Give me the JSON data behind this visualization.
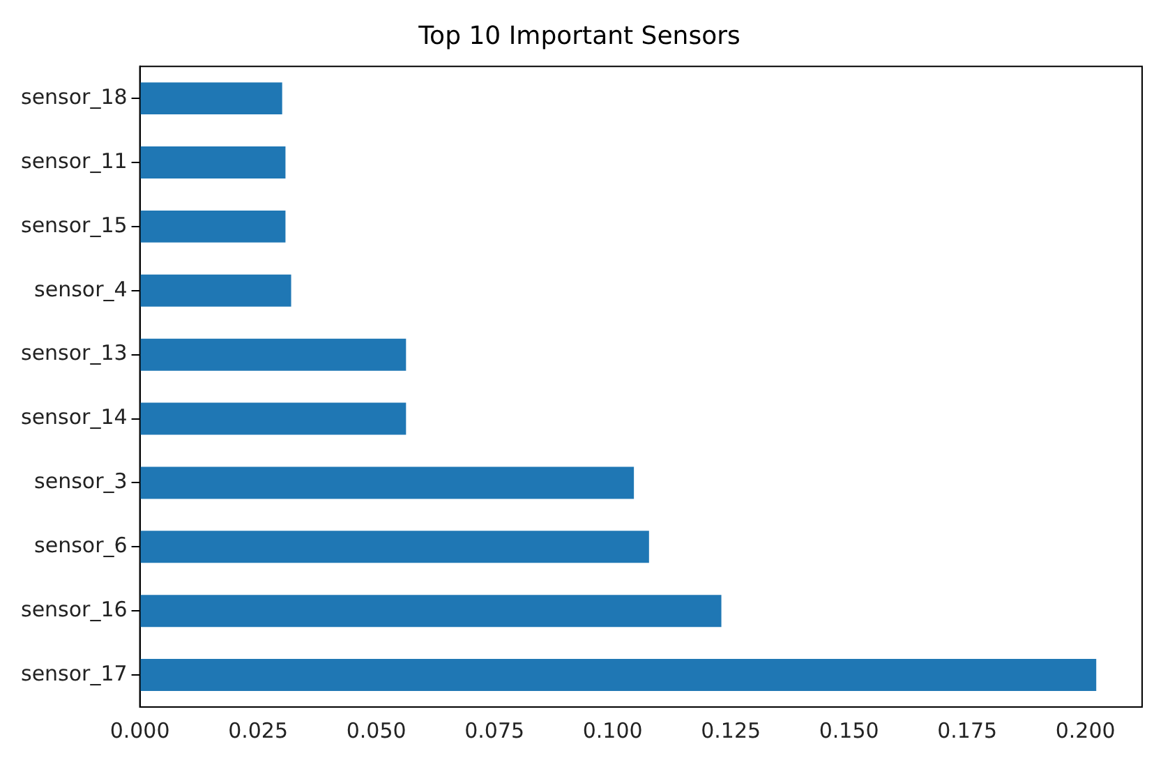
{
  "chart_data": {
    "type": "bar",
    "orientation": "horizontal",
    "title": "Top 10 Important Sensors",
    "categories": [
      "sensor_18",
      "sensor_11",
      "sensor_15",
      "sensor_4",
      "sensor_13",
      "sensor_14",
      "sensor_3",
      "sensor_6",
      "sensor_16",
      "sensor_17"
    ],
    "values": [
      0.0301,
      0.0308,
      0.0308,
      0.032,
      0.0563,
      0.0563,
      0.1045,
      0.1077,
      0.123,
      0.2023
    ],
    "color": "#1f77b4",
    "xlim": [
      0,
      0.212
    ],
    "xticks": [
      {
        "value": 0,
        "label": "0.000"
      },
      {
        "value": 0.025,
        "label": "0.025"
      },
      {
        "value": 0.05,
        "label": "0.050"
      },
      {
        "value": 0.075,
        "label": "0.075"
      },
      {
        "value": 0.1,
        "label": "0.100"
      },
      {
        "value": 0.125,
        "label": "0.125"
      },
      {
        "value": 0.15,
        "label": "0.150"
      },
      {
        "value": 0.175,
        "label": "0.175"
      },
      {
        "value": 0.2,
        "label": "0.200"
      }
    ],
    "grid": false,
    "legend": false
  }
}
